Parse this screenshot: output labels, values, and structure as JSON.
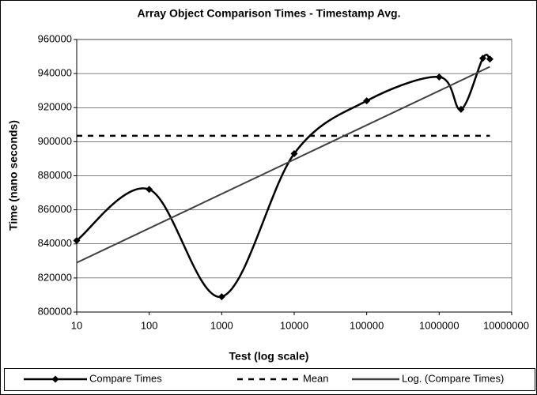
{
  "chart_data": {
    "type": "line",
    "title": "Array Object Comparison Times - Timestamp Avg.",
    "x_label": "Test (log scale)",
    "y_label": "Time (nano seconds)",
    "xscale": "log",
    "xlim": [
      10,
      10000000
    ],
    "xticks": [
      10,
      100,
      1000,
      10000,
      100000,
      1000000,
      10000000
    ],
    "ylim": [
      800000,
      960000
    ],
    "yticks": [
      800000,
      820000,
      840000,
      860000,
      880000,
      900000,
      920000,
      940000,
      960000
    ],
    "grid": true,
    "legend": "bottom",
    "series": [
      {
        "name": "Compare Times",
        "color": "#000000",
        "style": "smooth-diamond",
        "x": [
          10,
          100,
          1000,
          10000,
          100000,
          1000000,
          2000000,
          4000000,
          5000000
        ],
        "values": [
          842000,
          872000,
          809000,
          893000,
          924000,
          938000,
          919000,
          949000,
          948500
        ]
      },
      {
        "name": "Mean",
        "color": "#000000",
        "style": "dashed",
        "x": [
          10,
          5000000
        ],
        "values": [
          903500,
          903500
        ]
      },
      {
        "name": "Log. (Compare Times)",
        "color": "#404040",
        "style": "solid",
        "x": [
          10,
          5000000
        ],
        "values": [
          829000,
          944000
        ]
      }
    ]
  }
}
